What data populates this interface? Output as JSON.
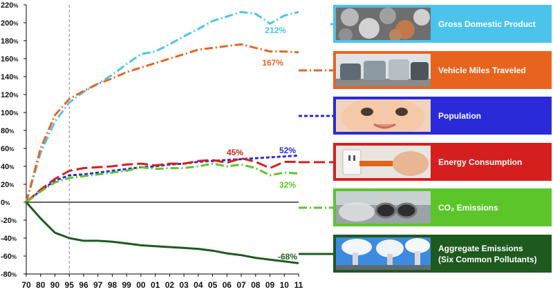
{
  "chart_data": {
    "type": "line",
    "x": [
      "70",
      "80",
      "90",
      "95",
      "96",
      "97",
      "98",
      "99",
      "00",
      "01",
      "02",
      "03",
      "04",
      "05",
      "06",
      "07",
      "08",
      "09",
      "10",
      "11"
    ],
    "y_tick_labels": [
      "220%",
      "200%",
      "180%",
      "160%",
      "140%",
      "120%",
      "100%",
      "80%",
      "60%",
      "40%",
      "20%",
      "0%",
      "-20%",
      "-40%",
      "-60%",
      "-80%"
    ],
    "ylim": [
      -80,
      220
    ],
    "grid": false,
    "reference_line_x": "95",
    "series": [
      {
        "name": "Gross Domestic Product",
        "color": "#4cc3ea",
        "dash": "dashdot",
        "values": [
          0,
          55,
          90,
          111,
          123,
          132,
          142,
          154,
          165,
          168,
          176,
          185,
          193,
          202,
          207,
          212,
          210,
          199,
          208,
          212
        ],
        "end_label": "212%"
      },
      {
        "name": "Vehicle Miles Traveled",
        "color": "#e8641e",
        "dash": "dashdot",
        "values": [
          0,
          60,
          97,
          115,
          124,
          132,
          138,
          145,
          150,
          155,
          160,
          165,
          170,
          172,
          174,
          176,
          172,
          168,
          168,
          167
        ],
        "end_label": "167%"
      },
      {
        "name": "Population",
        "color": "#2a2ad8",
        "dash": "short",
        "values": [
          0,
          13,
          24,
          30,
          31,
          33,
          35,
          37,
          39,
          40,
          42,
          43,
          45,
          46,
          47,
          48,
          49,
          50,
          51,
          52
        ],
        "end_label": "52%"
      },
      {
        "name": "Energy Consumption",
        "color": "#d51f1f",
        "dash": "long",
        "values": [
          0,
          14,
          26,
          35,
          38,
          39,
          40,
          42,
          43,
          41,
          43,
          43,
          46,
          47,
          44,
          49,
          45,
          38,
          45,
          45
        ],
        "end_label": "45%"
      },
      {
        "name": "CO2 Emissions",
        "color": "#5cc52a",
        "dash": "dashdot",
        "values": [
          0,
          12,
          22,
          27,
          29,
          31,
          33,
          35,
          39,
          37,
          38,
          38,
          40,
          43,
          40,
          42,
          38,
          30,
          33,
          32
        ],
        "end_label": "32%"
      },
      {
        "name": "Aggregate Emissions (Six Common Pollutants)",
        "color": "#1e5a1e",
        "dash": "solid",
        "values": [
          0,
          -18,
          -34,
          -40,
          -43,
          -43,
          -44,
          -46,
          -48,
          -49,
          -50,
          -51,
          -52,
          -54,
          -57,
          -59,
          -62,
          -64,
          -66,
          -68
        ],
        "end_label": "-68%"
      }
    ]
  },
  "legend": [
    {
      "label": "Gross Domestic Product",
      "bg": "#4cc3ea",
      "photo": "coins-photo"
    },
    {
      "label": "Vehicle Miles Traveled",
      "bg": "#e8641e",
      "photo": "traffic-photo"
    },
    {
      "label": "Population",
      "bg": "#2a2ad8",
      "photo": "baby-photo"
    },
    {
      "label": "Energy Consumption",
      "bg": "#d51f1f",
      "photo": "plug-photo"
    },
    {
      "label": "CO₂ Emissions",
      "bg": "#5cc52a",
      "photo": "exhaust-photo"
    },
    {
      "label": "Aggregate Emissions\n(Six Common Pollutants)",
      "bg": "#1e5a1e",
      "photo": "smokestacks-photo"
    }
  ]
}
